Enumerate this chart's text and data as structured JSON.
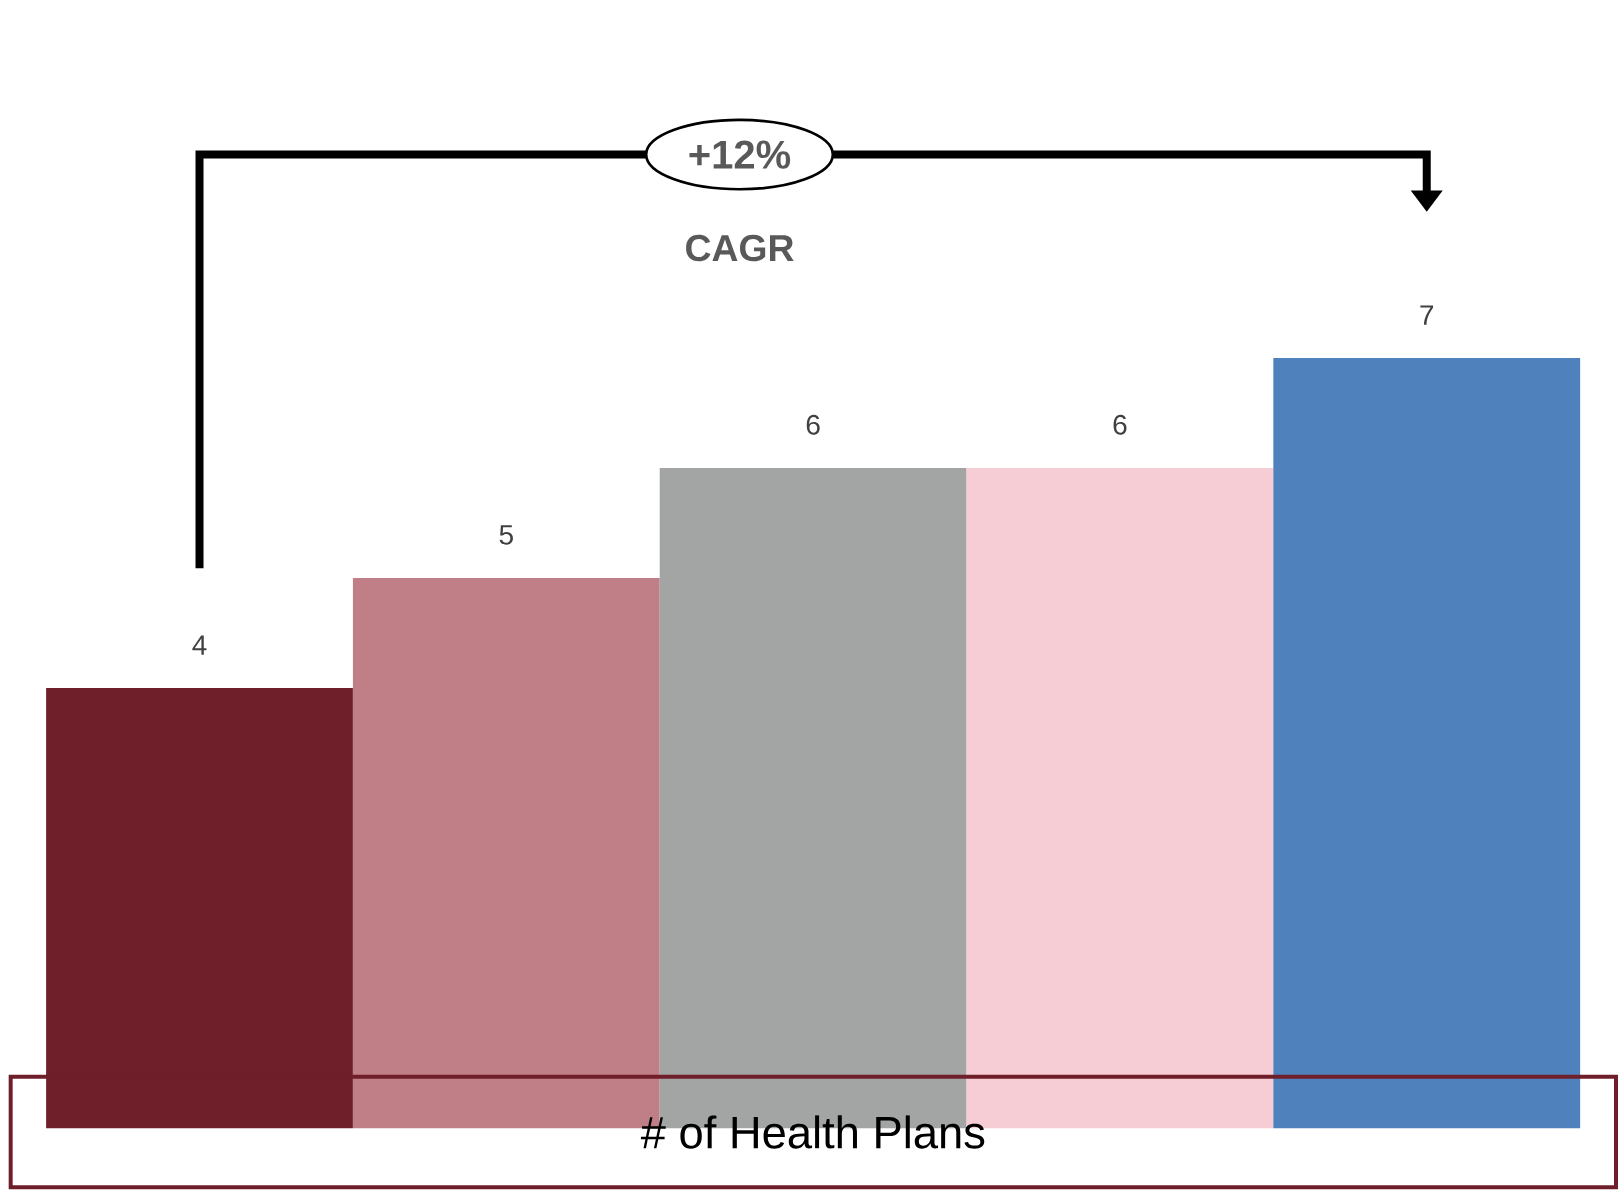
{
  "chart_data": {
    "type": "bar",
    "xlabel": "# of Health Plans",
    "categories": [
      null,
      null,
      null,
      null,
      null
    ],
    "values": [
      4,
      5,
      6,
      6,
      7
    ],
    "colors": [
      "#6f1f2a",
      "#c07f87",
      "#a3a4a4",
      "#f6cdd4",
      "#4f81bd"
    ],
    "data_labels": true,
    "annotations": [
      "+12%",
      "CAGR"
    ]
  }
}
